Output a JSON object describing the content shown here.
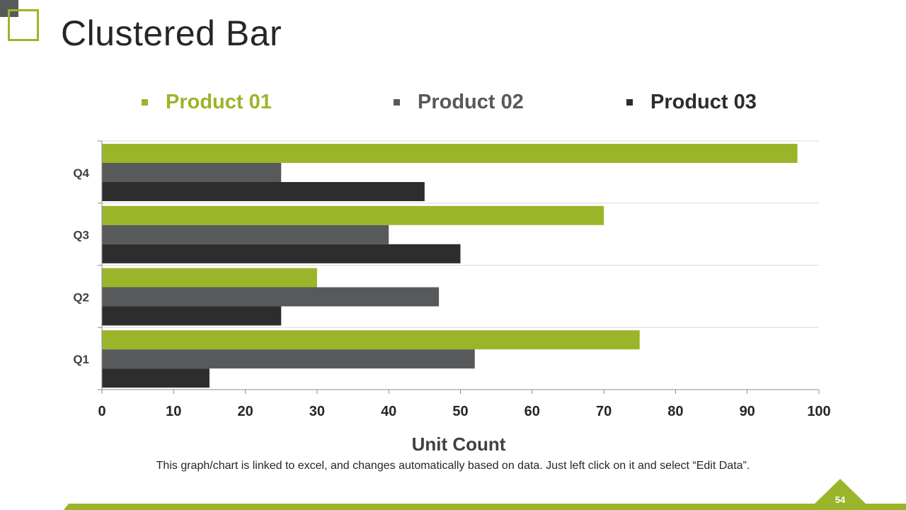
{
  "slide": {
    "title": "Clustered Bar",
    "footnote": "This graph/chart is linked to excel, and changes automatically based on data. Just left click on it and select “Edit Data”.",
    "page_number": "54"
  },
  "colors": {
    "product_01": "#9bb52a",
    "product_02": "#58595b",
    "product_03": "#2d2d2d",
    "accent": "#9bb52a"
  },
  "chart_data": {
    "type": "bar",
    "orientation": "horizontal",
    "title": "",
    "xlabel": "Unit Count",
    "ylabel": "",
    "categories": [
      "Q1",
      "Q2",
      "Q3",
      "Q4"
    ],
    "series": [
      {
        "name": "Product 01",
        "values": [
          75,
          30,
          70,
          97
        ]
      },
      {
        "name": "Product 02",
        "values": [
          52,
          47,
          40,
          25
        ]
      },
      {
        "name": "Product 03",
        "values": [
          15,
          25,
          50,
          45
        ]
      }
    ],
    "xlim": [
      0,
      100
    ],
    "xticks": [
      "0",
      "10",
      "20",
      "30",
      "40",
      "50",
      "60",
      "70",
      "80",
      "90",
      "100"
    ],
    "grid": true,
    "legend": "top"
  }
}
